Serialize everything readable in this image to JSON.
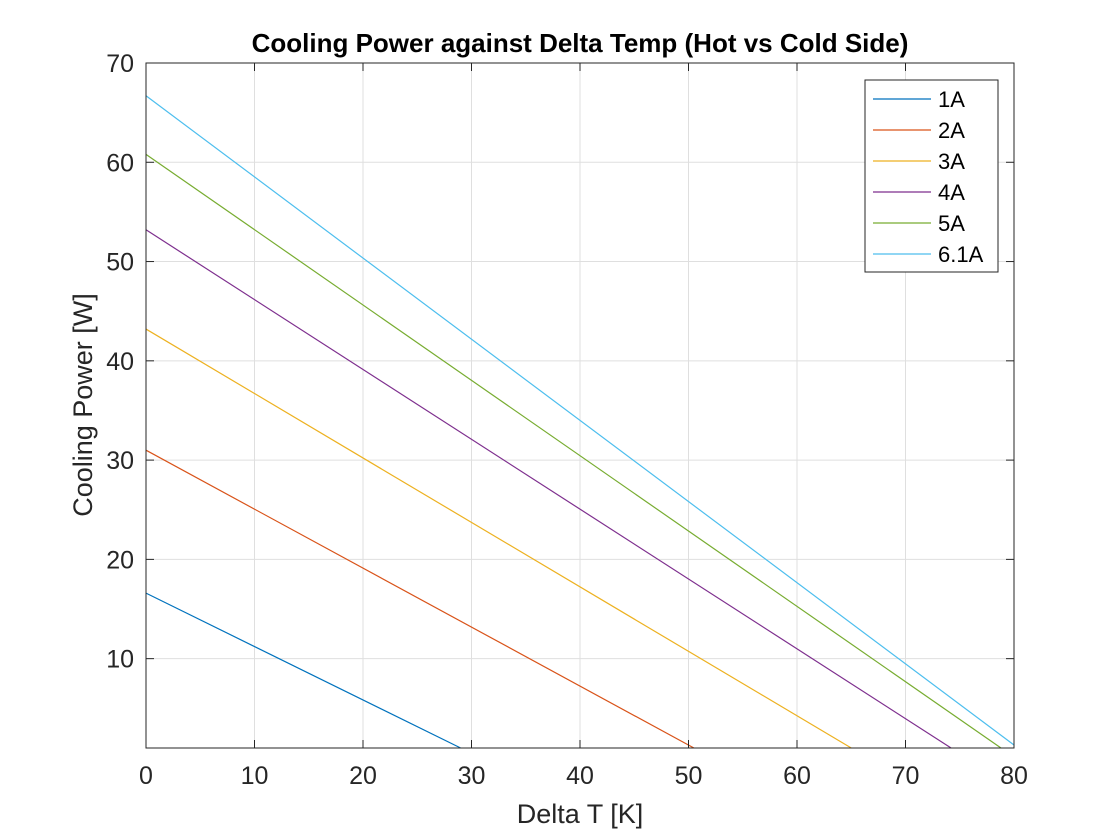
{
  "chart_data": {
    "type": "line",
    "title": "Cooling Power against Delta Temp (Hot vs Cold Side)",
    "xlabel": "Delta T [K]",
    "ylabel": "Cooling Power [W]",
    "xlim": [
      0,
      80
    ],
    "ylim": [
      1,
      70
    ],
    "xticks": [
      0,
      10,
      20,
      30,
      40,
      50,
      60,
      70,
      80
    ],
    "yticks": [
      10,
      20,
      30,
      40,
      50,
      60,
      70
    ],
    "grid": true,
    "legend_position": "top-right",
    "series": [
      {
        "name": "1A",
        "color": "#0072BD",
        "x": [
          0,
          29
        ],
        "y": [
          16.6,
          1
        ]
      },
      {
        "name": "2A",
        "color": "#D95319",
        "x": [
          0,
          50.5
        ],
        "y": [
          31.0,
          1
        ]
      },
      {
        "name": "3A",
        "color": "#EDB120",
        "x": [
          0,
          65
        ],
        "y": [
          43.2,
          1
        ]
      },
      {
        "name": "4A",
        "color": "#7E2F8E",
        "x": [
          0,
          74.2
        ],
        "y": [
          53.2,
          1
        ]
      },
      {
        "name": "5A",
        "color": "#77AC30",
        "x": [
          0,
          78.8
        ],
        "y": [
          60.8,
          1
        ]
      },
      {
        "name": "6.1A",
        "color": "#4DBEEE",
        "x": [
          0,
          80
        ],
        "y": [
          66.7,
          1.3
        ]
      }
    ]
  }
}
